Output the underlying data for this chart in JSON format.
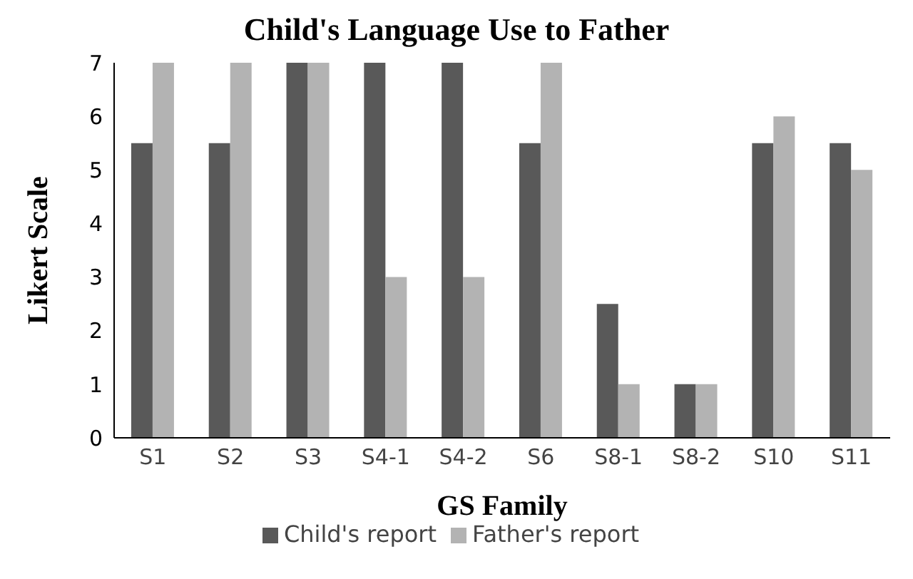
{
  "chart_data": {
    "type": "bar",
    "title": "Child's Language Use to Father",
    "xlabel": "GS Family",
    "ylabel": "Likert Scale",
    "categories": [
      "S1",
      "S2",
      "S3",
      "S4-1",
      "S4-2",
      "S6",
      "S8-1",
      "S8-2",
      "S10",
      "S11"
    ],
    "series": [
      {
        "name": "Child's report",
        "color": "#595959",
        "values": [
          5.5,
          5.5,
          7,
          7,
          7,
          5.5,
          2.5,
          1,
          5.5,
          5.5
        ]
      },
      {
        "name": "Father's report",
        "color": "#b3b3b3",
        "values": [
          7,
          7,
          7,
          3,
          3,
          7,
          1,
          1,
          6,
          5
        ]
      }
    ],
    "ylim": [
      0,
      7
    ],
    "yticks": [
      0,
      1,
      2,
      3,
      4,
      5,
      6,
      7
    ],
    "grid": false,
    "legend": "bottom"
  }
}
